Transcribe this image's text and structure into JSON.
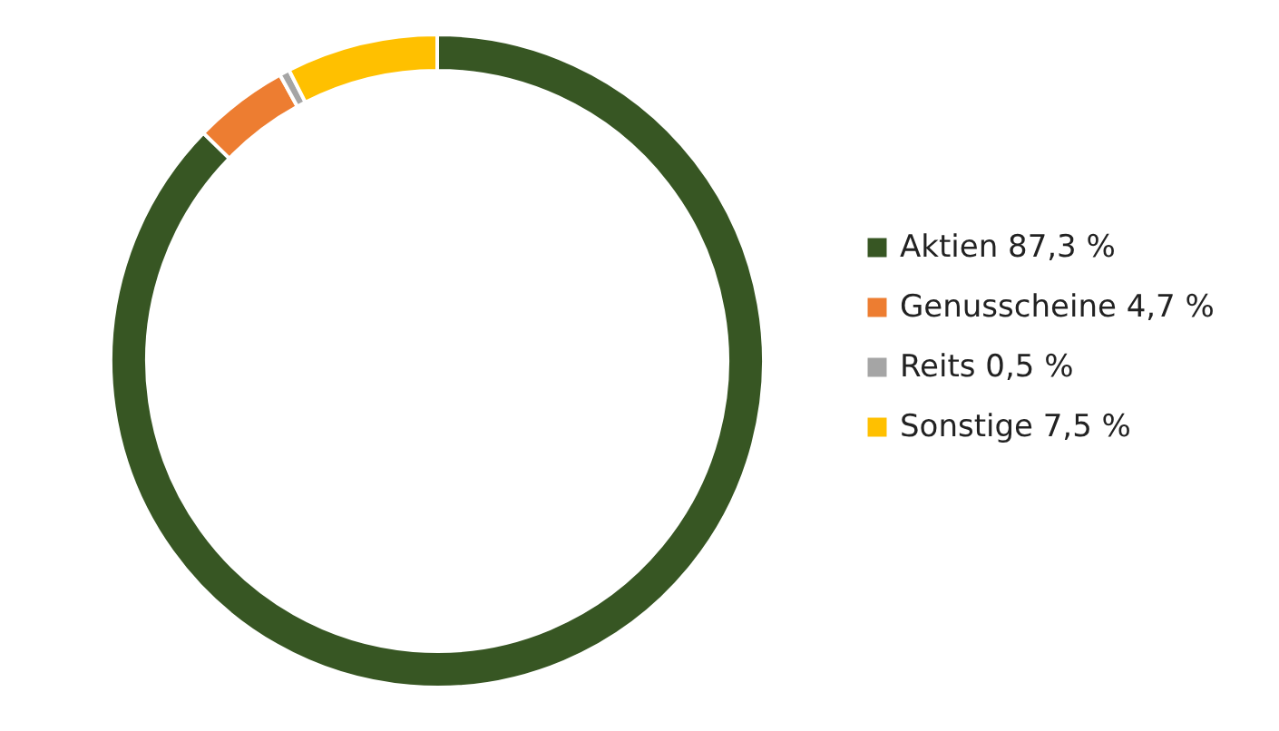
{
  "chart_data": {
    "type": "donut",
    "categories": [
      "Aktien",
      "Genusscheine",
      "Reits",
      "Sonstige"
    ],
    "values": [
      87.3,
      4.7,
      0.5,
      7.5
    ],
    "value_labels": [
      "87,3 %",
      "4,7 %",
      "0,5 %",
      "7,5 %"
    ],
    "colors": [
      "#375623",
      "#ed7d31",
      "#a5a5a5",
      "#ffc000"
    ],
    "legend": "right"
  }
}
